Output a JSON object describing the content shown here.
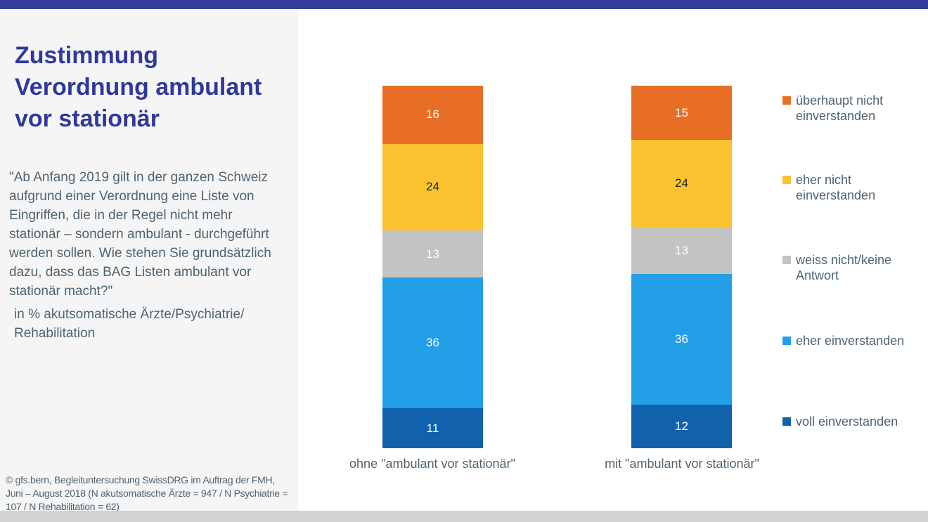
{
  "page": {
    "title": "Zustimmung\nVerordnung ambulant\nvor stationär",
    "question": "\"Ab Anfang 2019 gilt in der ganzen Schweiz\naufgrund einer Verordnung eine Liste von\nEingriffen, die in der Regel nicht mehr\nstationär – sondern ambulant -  durchgeführt\nwerden sollen. Wie stehen Sie grundsätzlich\ndazu, dass das BAG Listen ambulant vor\nstationär macht?\"",
    "unit_note": "in % akutsomatische Ärzte/Psychiatrie/\nRehabilitation",
    "source": "© gfs.bern, Begleituntersuchung SwissDRG im Auftrag der FMH,\nJuni – August 2018 (N akutsomatische Ärzte = 947 / N Psychiatrie =\n107 / N Rehabilitation = 62)"
  },
  "colors": {
    "top_bar": "#343d9b",
    "title_blue": "#30389b",
    "panel_background": "#f5f5f5",
    "bottom_strip": "#d2d2d2",
    "body_text": "#4e6372",
    "orange": "#e86e26",
    "yellow": "#fac22e",
    "gray": "#c3c3c3",
    "light_blue": "#229fe6",
    "dark_blue": "#1161ad"
  },
  "chart_data": {
    "type": "bar",
    "stacked": true,
    "title": "Zustimmung Verordnung ambulant vor stationär",
    "ylabel": "in % akutsomatische Ärzte/Psychiatrie/Rehabilitation",
    "ylim": [
      0,
      100
    ],
    "grid": false,
    "legend_position": "right",
    "categories": [
      "ohne \"ambulant vor stationär\"",
      "mit \"ambulant vor stationär\""
    ],
    "series": [
      {
        "name": "überhaupt nicht einverstanden",
        "color": "#e86e26",
        "label_color": "#ffffff",
        "values": [
          16,
          15
        ]
      },
      {
        "name": "eher nicht einverstanden",
        "color": "#fac22e",
        "label_color": "#1f1f1f",
        "values": [
          24,
          24
        ]
      },
      {
        "name": "weiss nicht/keine Antwort",
        "color": "#c3c3c3",
        "label_color": "#ffffff",
        "values": [
          13,
          13
        ]
      },
      {
        "name": "eher einverstanden",
        "color": "#229fe6",
        "label_color": "#ffffff",
        "values": [
          36,
          36
        ]
      },
      {
        "name": "voll einverstanden",
        "color": "#1161ad",
        "label_color": "#ffffff",
        "values": [
          11,
          12
        ]
      }
    ]
  }
}
